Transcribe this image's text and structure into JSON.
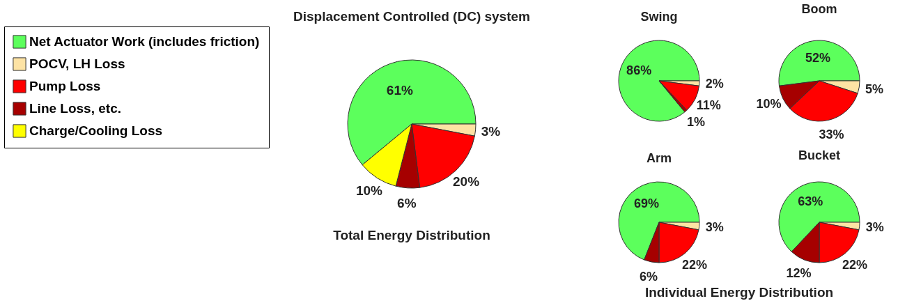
{
  "chart_data": [
    {
      "type": "pie",
      "title": "Displacement Controlled (DC) system",
      "categories": [
        "Net Actuator Work (includes friction)",
        "POCV, LH Loss",
        "Pump Loss",
        "Line Loss, etc.",
        "Charge/Cooling Loss"
      ],
      "values": [
        61,
        3,
        20,
        6,
        10
      ],
      "value_labels": [
        "61%",
        "3%",
        "20%",
        "6%",
        "10%"
      ],
      "colors": [
        "#5cff5c",
        "#fde3a4",
        "#ff0000",
        "#a60000",
        "#ffff00"
      ],
      "legend": "left",
      "annotations": [
        "Total Energy Distribution"
      ]
    },
    {
      "type": "pie",
      "title": "Swing",
      "categories": [
        null,
        null,
        null,
        null
      ],
      "values": [
        86,
        2,
        11,
        1
      ],
      "value_labels": [
        "86%",
        "2%",
        "11%",
        "1%"
      ],
      "colors": [
        "#5cff5c",
        "#fde3a4",
        "#ff0000",
        "#a60000"
      ],
      "annotations": [
        "Individual Energy Distribution"
      ]
    },
    {
      "type": "pie",
      "title": "Boom",
      "categories": [
        null,
        null,
        null,
        null
      ],
      "values": [
        52,
        5,
        33,
        10
      ],
      "value_labels": [
        "52%",
        "5%",
        "33%",
        "10%"
      ],
      "colors": [
        "#5cff5c",
        "#fde3a4",
        "#ff0000",
        "#a60000"
      ]
    },
    {
      "type": "pie",
      "title": "Arm",
      "categories": [
        null,
        null,
        null,
        null
      ],
      "values": [
        69,
        3,
        22,
        6
      ],
      "value_labels": [
        "69%",
        "3%",
        "22%",
        "6%"
      ],
      "colors": [
        "#5cff5c",
        "#fde3a4",
        "#ff0000",
        "#a60000"
      ]
    },
    {
      "type": "pie",
      "title": "Bucket",
      "categories": [
        null,
        null,
        null,
        null
      ],
      "values": [
        63,
        3,
        22,
        12
      ],
      "value_labels": [
        "63%",
        "3%",
        "22%",
        "12%"
      ],
      "colors": [
        "#5cff5c",
        "#fde3a4",
        "#ff0000",
        "#a60000"
      ]
    }
  ]
}
